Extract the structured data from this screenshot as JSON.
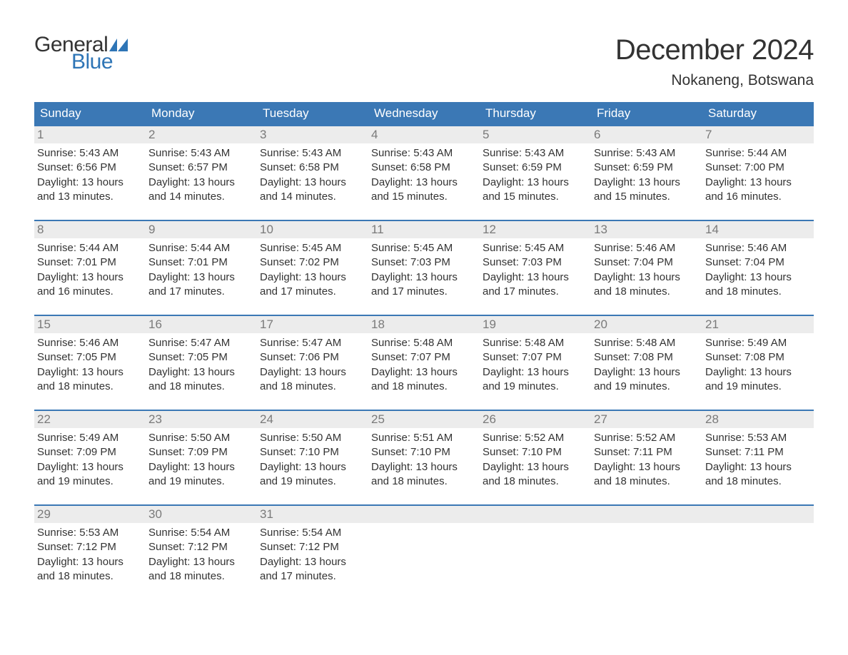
{
  "brand": {
    "general": "General",
    "blue": "Blue",
    "flag_color": "#2e75b6"
  },
  "title": "December 2024",
  "location": "Nokaneng, Botswana",
  "colors": {
    "header_bg": "#3b78b5",
    "header_text": "#ffffff",
    "daynum_bg": "#ececec",
    "daynum_text": "#7a7a7a",
    "body_text": "#333333",
    "accent": "#2e75b6",
    "background": "#ffffff"
  },
  "typography": {
    "title_fontsize": 40,
    "location_fontsize": 21,
    "dayheader_fontsize": 17,
    "daynum_fontsize": 17,
    "details_fontsize": 15,
    "logo_fontsize": 30
  },
  "layout": {
    "columns": 7,
    "rows": 5,
    "cell_border_top_color": "#3b78b5"
  },
  "day_names": [
    "Sunday",
    "Monday",
    "Tuesday",
    "Wednesday",
    "Thursday",
    "Friday",
    "Saturday"
  ],
  "weeks": [
    [
      {
        "n": "1",
        "sunrise": "Sunrise: 5:43 AM",
        "sunset": "Sunset: 6:56 PM",
        "d1": "Daylight: 13 hours",
        "d2": "and 13 minutes."
      },
      {
        "n": "2",
        "sunrise": "Sunrise: 5:43 AM",
        "sunset": "Sunset: 6:57 PM",
        "d1": "Daylight: 13 hours",
        "d2": "and 14 minutes."
      },
      {
        "n": "3",
        "sunrise": "Sunrise: 5:43 AM",
        "sunset": "Sunset: 6:58 PM",
        "d1": "Daylight: 13 hours",
        "d2": "and 14 minutes."
      },
      {
        "n": "4",
        "sunrise": "Sunrise: 5:43 AM",
        "sunset": "Sunset: 6:58 PM",
        "d1": "Daylight: 13 hours",
        "d2": "and 15 minutes."
      },
      {
        "n": "5",
        "sunrise": "Sunrise: 5:43 AM",
        "sunset": "Sunset: 6:59 PM",
        "d1": "Daylight: 13 hours",
        "d2": "and 15 minutes."
      },
      {
        "n": "6",
        "sunrise": "Sunrise: 5:43 AM",
        "sunset": "Sunset: 6:59 PM",
        "d1": "Daylight: 13 hours",
        "d2": "and 15 minutes."
      },
      {
        "n": "7",
        "sunrise": "Sunrise: 5:44 AM",
        "sunset": "Sunset: 7:00 PM",
        "d1": "Daylight: 13 hours",
        "d2": "and 16 minutes."
      }
    ],
    [
      {
        "n": "8",
        "sunrise": "Sunrise: 5:44 AM",
        "sunset": "Sunset: 7:01 PM",
        "d1": "Daylight: 13 hours",
        "d2": "and 16 minutes."
      },
      {
        "n": "9",
        "sunrise": "Sunrise: 5:44 AM",
        "sunset": "Sunset: 7:01 PM",
        "d1": "Daylight: 13 hours",
        "d2": "and 17 minutes."
      },
      {
        "n": "10",
        "sunrise": "Sunrise: 5:45 AM",
        "sunset": "Sunset: 7:02 PM",
        "d1": "Daylight: 13 hours",
        "d2": "and 17 minutes."
      },
      {
        "n": "11",
        "sunrise": "Sunrise: 5:45 AM",
        "sunset": "Sunset: 7:03 PM",
        "d1": "Daylight: 13 hours",
        "d2": "and 17 minutes."
      },
      {
        "n": "12",
        "sunrise": "Sunrise: 5:45 AM",
        "sunset": "Sunset: 7:03 PM",
        "d1": "Daylight: 13 hours",
        "d2": "and 17 minutes."
      },
      {
        "n": "13",
        "sunrise": "Sunrise: 5:46 AM",
        "sunset": "Sunset: 7:04 PM",
        "d1": "Daylight: 13 hours",
        "d2": "and 18 minutes."
      },
      {
        "n": "14",
        "sunrise": "Sunrise: 5:46 AM",
        "sunset": "Sunset: 7:04 PM",
        "d1": "Daylight: 13 hours",
        "d2": "and 18 minutes."
      }
    ],
    [
      {
        "n": "15",
        "sunrise": "Sunrise: 5:46 AM",
        "sunset": "Sunset: 7:05 PM",
        "d1": "Daylight: 13 hours",
        "d2": "and 18 minutes."
      },
      {
        "n": "16",
        "sunrise": "Sunrise: 5:47 AM",
        "sunset": "Sunset: 7:05 PM",
        "d1": "Daylight: 13 hours",
        "d2": "and 18 minutes."
      },
      {
        "n": "17",
        "sunrise": "Sunrise: 5:47 AM",
        "sunset": "Sunset: 7:06 PM",
        "d1": "Daylight: 13 hours",
        "d2": "and 18 minutes."
      },
      {
        "n": "18",
        "sunrise": "Sunrise: 5:48 AM",
        "sunset": "Sunset: 7:07 PM",
        "d1": "Daylight: 13 hours",
        "d2": "and 18 minutes."
      },
      {
        "n": "19",
        "sunrise": "Sunrise: 5:48 AM",
        "sunset": "Sunset: 7:07 PM",
        "d1": "Daylight: 13 hours",
        "d2": "and 19 minutes."
      },
      {
        "n": "20",
        "sunrise": "Sunrise: 5:48 AM",
        "sunset": "Sunset: 7:08 PM",
        "d1": "Daylight: 13 hours",
        "d2": "and 19 minutes."
      },
      {
        "n": "21",
        "sunrise": "Sunrise: 5:49 AM",
        "sunset": "Sunset: 7:08 PM",
        "d1": "Daylight: 13 hours",
        "d2": "and 19 minutes."
      }
    ],
    [
      {
        "n": "22",
        "sunrise": "Sunrise: 5:49 AM",
        "sunset": "Sunset: 7:09 PM",
        "d1": "Daylight: 13 hours",
        "d2": "and 19 minutes."
      },
      {
        "n": "23",
        "sunrise": "Sunrise: 5:50 AM",
        "sunset": "Sunset: 7:09 PM",
        "d1": "Daylight: 13 hours",
        "d2": "and 19 minutes."
      },
      {
        "n": "24",
        "sunrise": "Sunrise: 5:50 AM",
        "sunset": "Sunset: 7:10 PM",
        "d1": "Daylight: 13 hours",
        "d2": "and 19 minutes."
      },
      {
        "n": "25",
        "sunrise": "Sunrise: 5:51 AM",
        "sunset": "Sunset: 7:10 PM",
        "d1": "Daylight: 13 hours",
        "d2": "and 18 minutes."
      },
      {
        "n": "26",
        "sunrise": "Sunrise: 5:52 AM",
        "sunset": "Sunset: 7:10 PM",
        "d1": "Daylight: 13 hours",
        "d2": "and 18 minutes."
      },
      {
        "n": "27",
        "sunrise": "Sunrise: 5:52 AM",
        "sunset": "Sunset: 7:11 PM",
        "d1": "Daylight: 13 hours",
        "d2": "and 18 minutes."
      },
      {
        "n": "28",
        "sunrise": "Sunrise: 5:53 AM",
        "sunset": "Sunset: 7:11 PM",
        "d1": "Daylight: 13 hours",
        "d2": "and 18 minutes."
      }
    ],
    [
      {
        "n": "29",
        "sunrise": "Sunrise: 5:53 AM",
        "sunset": "Sunset: 7:12 PM",
        "d1": "Daylight: 13 hours",
        "d2": "and 18 minutes."
      },
      {
        "n": "30",
        "sunrise": "Sunrise: 5:54 AM",
        "sunset": "Sunset: 7:12 PM",
        "d1": "Daylight: 13 hours",
        "d2": "and 18 minutes."
      },
      {
        "n": "31",
        "sunrise": "Sunrise: 5:54 AM",
        "sunset": "Sunset: 7:12 PM",
        "d1": "Daylight: 13 hours",
        "d2": "and 17 minutes."
      },
      {
        "empty": true
      },
      {
        "empty": true
      },
      {
        "empty": true
      },
      {
        "empty": true
      }
    ]
  ]
}
